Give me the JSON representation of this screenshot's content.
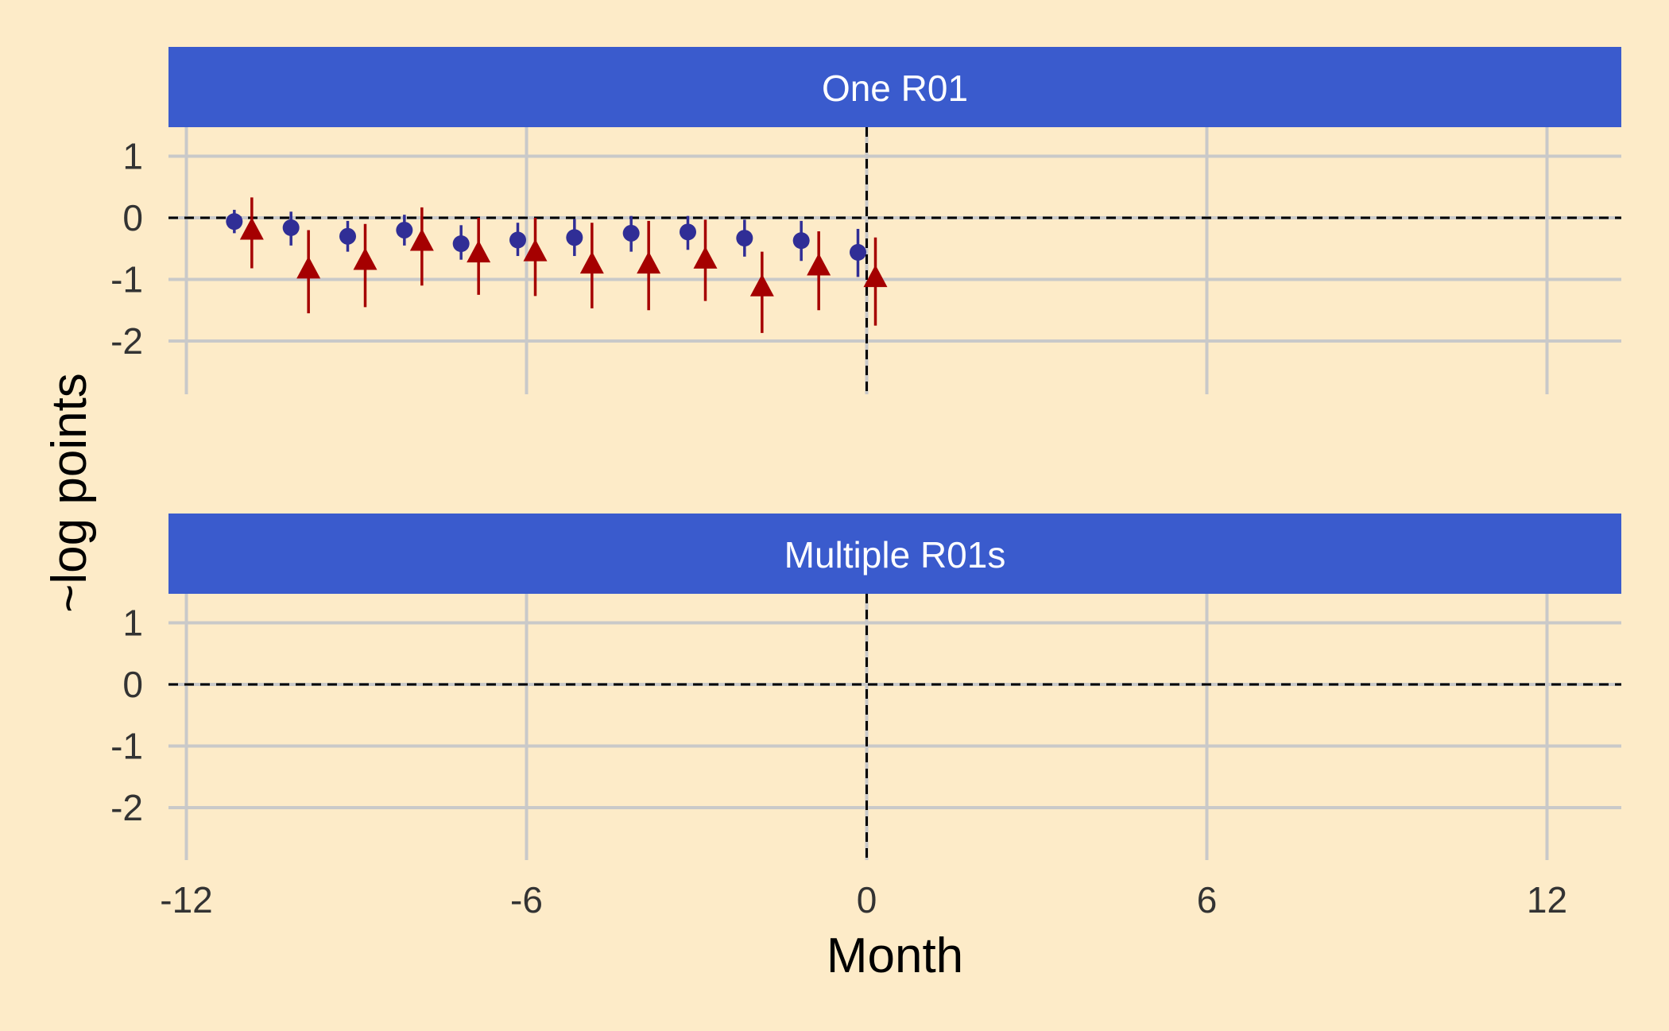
{
  "chart_data": {
    "type": "scatter",
    "xlabel": "Month",
    "ylabel": "~log points",
    "xlim": [
      -13,
      13.4
    ],
    "ylim": [
      -2.6,
      1.5
    ],
    "x_ticks": [
      -12,
      -6,
      0,
      6,
      12
    ],
    "x_tick_labels": [
      "-12",
      "-6",
      "0",
      "6",
      "12"
    ],
    "y_ticks": [
      1,
      0,
      -1,
      -2
    ],
    "y_tick_labels": [
      "1",
      "0",
      "-1",
      "-2"
    ],
    "reference_lines": {
      "x": 0,
      "y": 0,
      "style": "dashed"
    },
    "grid": true,
    "colors": {
      "background": "#fdebc8",
      "strip": "#3a5bcd",
      "strip_text": "#ffffff",
      "grid": "#c9c9c9",
      "circle_series": "#302e96",
      "triangle_series": "#a50000"
    },
    "panels": [
      {
        "title": "One R01",
        "series": [
          {
            "marker": "circle",
            "color": "#302e96",
            "x": [
              -11,
              -10,
              -9,
              -8,
              -7,
              -6,
              -5,
              -4,
              -3,
              -2,
              -1,
              0
            ],
            "values": [
              -0.06,
              -0.16,
              -0.3,
              -0.2,
              -0.42,
              -0.36,
              -0.32,
              -0.25,
              -0.23,
              -0.33,
              -0.37,
              -0.56
            ],
            "ci_low": [
              -0.25,
              -0.45,
              -0.55,
              -0.45,
              -0.68,
              -0.62,
              -0.62,
              -0.55,
              -0.52,
              -0.63,
              -0.7,
              -0.96
            ],
            "ci_high": [
              0.13,
              0.1,
              -0.05,
              0.05,
              -0.12,
              -0.08,
              -0.02,
              0.03,
              0.03,
              -0.03,
              -0.05,
              -0.18
            ]
          },
          {
            "marker": "triangle",
            "color": "#a50000",
            "x": [
              -11,
              -10,
              -9,
              -8,
              -7,
              -6,
              -5,
              -4,
              -3,
              -2,
              -1,
              0
            ],
            "values": [
              -0.2,
              -0.83,
              -0.69,
              -0.38,
              -0.57,
              -0.55,
              -0.75,
              -0.75,
              -0.67,
              -1.12,
              -0.78,
              -0.97
            ],
            "ci_low": [
              -0.82,
              -1.55,
              -1.45,
              -1.1,
              -1.25,
              -1.27,
              -1.47,
              -1.5,
              -1.35,
              -1.87,
              -1.5,
              -1.75
            ],
            "ci_high": [
              0.33,
              -0.2,
              -0.1,
              0.17,
              0.0,
              0.0,
              -0.08,
              -0.05,
              -0.03,
              -0.55,
              -0.22,
              -0.32
            ]
          }
        ]
      },
      {
        "title": "Multiple R01s",
        "series": []
      }
    ]
  }
}
